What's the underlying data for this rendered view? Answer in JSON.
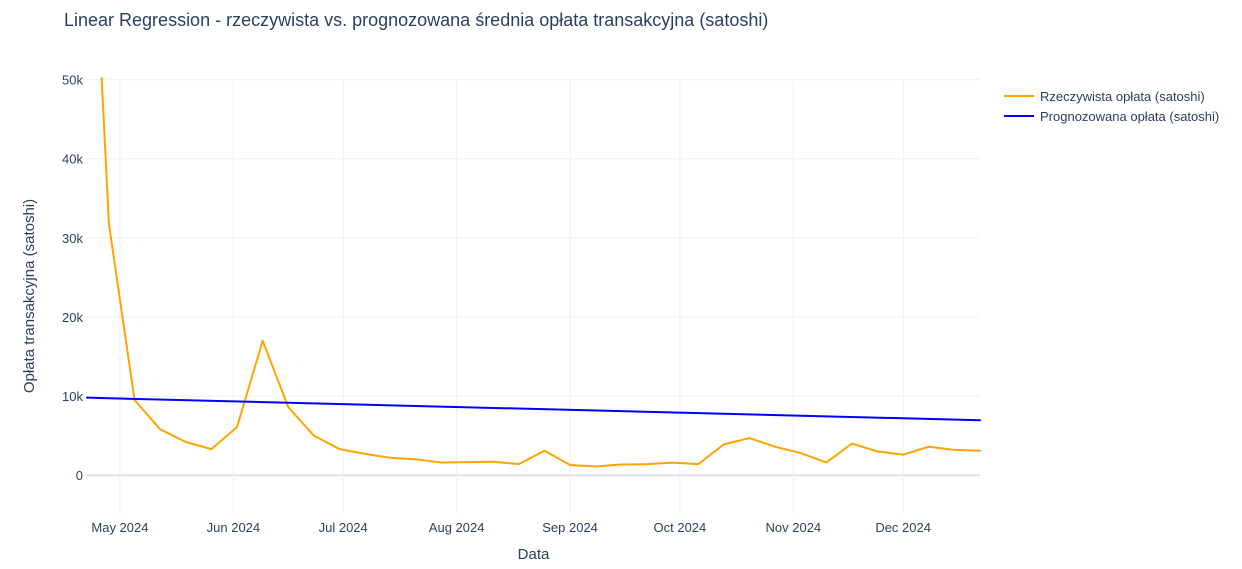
{
  "chart_data": {
    "type": "line",
    "title": "Linear Regression - rzeczywista vs. prognozowana średnia opłata transakcyjna (satoshi)",
    "xlabel": "Data",
    "ylabel": "Opłata transakcyjna (satoshi)",
    "x_range": [
      "2024-04-22",
      "2024-12-22"
    ],
    "ylim": [
      -4900,
      50200
    ],
    "y_ticks": [
      0,
      10000,
      20000,
      30000,
      40000,
      50000
    ],
    "y_tick_labels": [
      "0",
      "10k",
      "20k",
      "30k",
      "40k",
      "50k"
    ],
    "x_ticks": [
      "2024-05-01",
      "2024-06-01",
      "2024-07-01",
      "2024-08-01",
      "2024-09-01",
      "2024-10-01",
      "2024-11-01",
      "2024-12-01"
    ],
    "x_tick_labels": [
      "May 2024",
      "Jun 2024",
      "Jul 2024",
      "Aug 2024",
      "Sep 2024",
      "Oct 2024",
      "Nov 2024",
      "Dec 2024"
    ],
    "grid": true,
    "legend_position": "top-right",
    "series": [
      {
        "name": "Rzeczywista opłata (satoshi)",
        "color": "#FFA500",
        "x": [
          "2024-04-26",
          "2024-04-28",
          "2024-05-05",
          "2024-05-12",
          "2024-05-19",
          "2024-05-26",
          "2024-06-02",
          "2024-06-09",
          "2024-06-16",
          "2024-06-23",
          "2024-06-30",
          "2024-07-07",
          "2024-07-14",
          "2024-07-21",
          "2024-07-28",
          "2024-08-04",
          "2024-08-11",
          "2024-08-18",
          "2024-08-25",
          "2024-09-01",
          "2024-09-08",
          "2024-09-15",
          "2024-09-22",
          "2024-09-29",
          "2024-10-06",
          "2024-10-13",
          "2024-10-20",
          "2024-10-27",
          "2024-11-03",
          "2024-11-10",
          "2024-11-17",
          "2024-11-24",
          "2024-12-01",
          "2024-12-08",
          "2024-12-15",
          "2024-12-22"
        ],
        "y": [
          50200,
          31700,
          9500,
          5800,
          4200,
          3300,
          6100,
          17000,
          8600,
          5000,
          3300,
          2700,
          2200,
          2000,
          1600,
          1650,
          1700,
          1400,
          3100,
          1300,
          1100,
          1350,
          1400,
          1600,
          1400,
          3900,
          4700,
          3600,
          2800,
          1600,
          4000,
          3000,
          2600,
          3600,
          3200,
          3100
        ]
      },
      {
        "name": "Prognozowana opłata (satoshi)",
        "color": "#0000FF",
        "x": [
          "2024-04-22",
          "2024-12-22"
        ],
        "y": [
          9800,
          6950
        ]
      }
    ]
  }
}
